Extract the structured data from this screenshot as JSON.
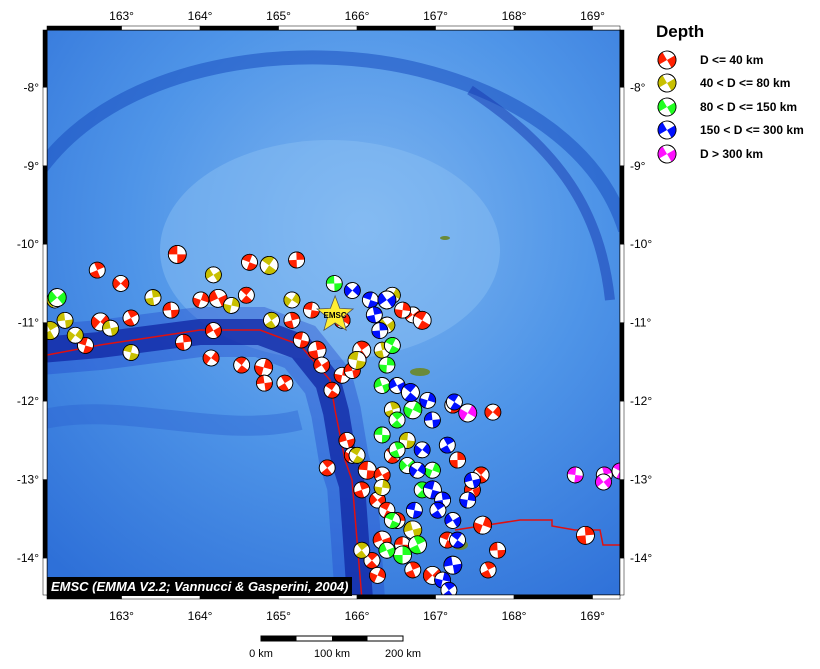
{
  "legend": {
    "title": "Depth",
    "items": [
      {
        "label": "D <= 40 km",
        "color": "#ff2000"
      },
      {
        "label": "40 < D <= 80 km",
        "color": "#c8c000"
      },
      {
        "label": "80 < D <= 150 km",
        "color": "#20ff20"
      },
      {
        "label": "150 < D <= 300 km",
        "color": "#0010ff"
      },
      {
        "label": "D > 300 km",
        "color": "#ff10ff"
      }
    ]
  },
  "map": {
    "lon_range": [
      162.05,
      169.35
    ],
    "lat_range": [
      -14.47,
      -7.27
    ],
    "lon_ticks": [
      163,
      164,
      165,
      166,
      167,
      168,
      169
    ],
    "lat_ticks": [
      -8,
      -9,
      -10,
      -11,
      -12,
      -13,
      -14
    ],
    "degree_symbol": "°",
    "emsc_marker": {
      "label": "EMSC",
      "lon": 165.72,
      "lat": -10.9,
      "color": "#ffee33"
    },
    "credit": "EMSC (EMMA V2.2; Vannucci & Gasperini, 2004)",
    "scale_bar": {
      "labels": [
        "0 km",
        "100 km",
        "200 km"
      ]
    }
  },
  "events": [
    [
      163.71,
      -10.13,
      0
    ],
    [
      162.69,
      -10.33,
      0
    ],
    [
      162.99,
      -10.5,
      0
    ],
    [
      164.63,
      -10.23,
      0
    ],
    [
      165.23,
      -10.2,
      0
    ],
    [
      164.23,
      -10.69,
      0
    ],
    [
      164.59,
      -10.65,
      0
    ],
    [
      164.01,
      -10.71,
      0
    ],
    [
      163.63,
      -10.84,
      0
    ],
    [
      163.12,
      -10.94,
      0
    ],
    [
      162.73,
      -10.99,
      0
    ],
    [
      162.54,
      -11.29,
      0
    ],
    [
      163.79,
      -11.25,
      0
    ],
    [
      164.17,
      -11.1,
      0
    ],
    [
      164.53,
      -11.54,
      0
    ],
    [
      164.81,
      -11.57,
      0
    ],
    [
      164.82,
      -11.77,
      0
    ],
    [
      165.08,
      -11.77,
      0
    ],
    [
      164.14,
      -11.45,
      0
    ],
    [
      165.29,
      -11.22,
      0
    ],
    [
      165.49,
      -11.35,
      0
    ],
    [
      165.55,
      -11.54,
      0
    ],
    [
      165.68,
      -11.86,
      0
    ],
    [
      165.81,
      -11.67,
      0
    ],
    [
      165.94,
      -11.61,
      0
    ],
    [
      166.06,
      -11.35,
      0
    ],
    [
      165.81,
      -10.97,
      0
    ],
    [
      165.42,
      -10.84,
      0
    ],
    [
      165.17,
      -10.97,
      0
    ],
    [
      166.71,
      -10.9,
      0
    ],
    [
      166.83,
      -10.97,
      0
    ],
    [
      166.58,
      -10.84,
      0
    ],
    [
      165.87,
      -12.5,
      0
    ],
    [
      165.62,
      -12.85,
      0
    ],
    [
      165.94,
      -12.69,
      0
    ],
    [
      166.13,
      -12.88,
      0
    ],
    [
      166.06,
      -13.13,
      0
    ],
    [
      166.26,
      -13.26,
      0
    ],
    [
      166.38,
      -13.39,
      0
    ],
    [
      166.51,
      -13.52,
      0
    ],
    [
      166.32,
      -13.77,
      0
    ],
    [
      166.19,
      -14.03,
      0
    ],
    [
      166.26,
      -14.22,
      0
    ],
    [
      166.58,
      -13.83,
      0
    ],
    [
      166.71,
      -14.15,
      0
    ],
    [
      166.96,
      -14.22,
      0
    ],
    [
      167.15,
      -13.77,
      0
    ],
    [
      167.28,
      -12.75,
      0
    ],
    [
      167.47,
      -13.13,
      0
    ],
    [
      167.58,
      -12.94,
      0
    ],
    [
      167.6,
      -13.58,
      0
    ],
    [
      167.79,
      -13.9,
      0
    ],
    [
      167.67,
      -14.15,
      0
    ],
    [
      167.73,
      -12.14,
      0
    ],
    [
      167.22,
      -12.05,
      0
    ],
    [
      168.91,
      -13.71,
      0
    ],
    [
      166.32,
      -12.94,
      0
    ],
    [
      166.45,
      -12.69,
      0
    ],
    [
      162.15,
      -10.71,
      1
    ],
    [
      162.28,
      -10.97,
      1
    ],
    [
      162.09,
      -11.1,
      1
    ],
    [
      162.41,
      -11.16,
      1
    ],
    [
      163.12,
      -11.38,
      1
    ],
    [
      163.4,
      -10.68,
      1
    ],
    [
      164.17,
      -10.39,
      1
    ],
    [
      164.88,
      -10.27,
      1
    ],
    [
      164.4,
      -10.78,
      1
    ],
    [
      162.86,
      -11.07,
      1
    ],
    [
      164.91,
      -10.97,
      1
    ],
    [
      165.17,
      -10.71,
      1
    ],
    [
      166.0,
      -11.48,
      1
    ],
    [
      166.32,
      -11.35,
      1
    ],
    [
      166.38,
      -11.03,
      1
    ],
    [
      166.0,
      -12.69,
      1
    ],
    [
      166.32,
      -13.1,
      1
    ],
    [
      166.71,
      -13.64,
      1
    ],
    [
      166.06,
      -13.9,
      1
    ],
    [
      166.45,
      -10.65,
      1
    ],
    [
      166.64,
      -12.5,
      1
    ],
    [
      166.45,
      -12.11,
      1
    ],
    [
      162.18,
      -10.68,
      2
    ],
    [
      166.45,
      -11.29,
      2
    ],
    [
      166.38,
      -11.54,
      2
    ],
    [
      166.32,
      -11.8,
      2
    ],
    [
      166.51,
      -12.24,
      2
    ],
    [
      166.71,
      -12.11,
      2
    ],
    [
      166.32,
      -12.43,
      2
    ],
    [
      166.51,
      -12.62,
      2
    ],
    [
      166.64,
      -12.82,
      2
    ],
    [
      166.45,
      -13.52,
      2
    ],
    [
      166.58,
      -13.96,
      2
    ],
    [
      166.38,
      -13.9,
      2
    ],
    [
      166.83,
      -13.13,
      2
    ],
    [
      166.96,
      -12.88,
      2
    ],
    [
      165.71,
      -10.5,
      2
    ],
    [
      166.77,
      -13.83,
      2
    ],
    [
      165.94,
      -10.59,
      3
    ],
    [
      166.17,
      -10.71,
      3
    ],
    [
      166.29,
      -11.1,
      3
    ],
    [
      166.51,
      -11.8,
      3
    ],
    [
      166.68,
      -11.89,
      3
    ],
    [
      166.9,
      -11.99,
      3
    ],
    [
      166.96,
      -12.24,
      3
    ],
    [
      167.15,
      -12.56,
      3
    ],
    [
      166.83,
      -12.62,
      3
    ],
    [
      166.96,
      -13.13,
      3
    ],
    [
      167.09,
      -13.26,
      3
    ],
    [
      167.22,
      -13.52,
      3
    ],
    [
      167.28,
      -13.77,
      3
    ],
    [
      167.09,
      -14.28,
      3
    ],
    [
      167.22,
      -14.09,
      3
    ],
    [
      167.03,
      -13.39,
      3
    ],
    [
      166.77,
      -12.88,
      3
    ],
    [
      166.73,
      -13.39,
      3
    ],
    [
      166.22,
      -10.9,
      3
    ],
    [
      166.38,
      -10.71,
      3
    ],
    [
      167.24,
      -12.01,
      3
    ],
    [
      167.41,
      -13.26,
      3
    ],
    [
      167.47,
      -13.01,
      3
    ],
    [
      167.17,
      -14.41,
      3
    ],
    [
      167.41,
      -12.15,
      4
    ],
    [
      168.78,
      -12.94,
      4
    ],
    [
      169.15,
      -12.94,
      4
    ],
    [
      169.14,
      -13.03,
      4
    ],
    [
      169.35,
      -12.89,
      4
    ]
  ]
}
